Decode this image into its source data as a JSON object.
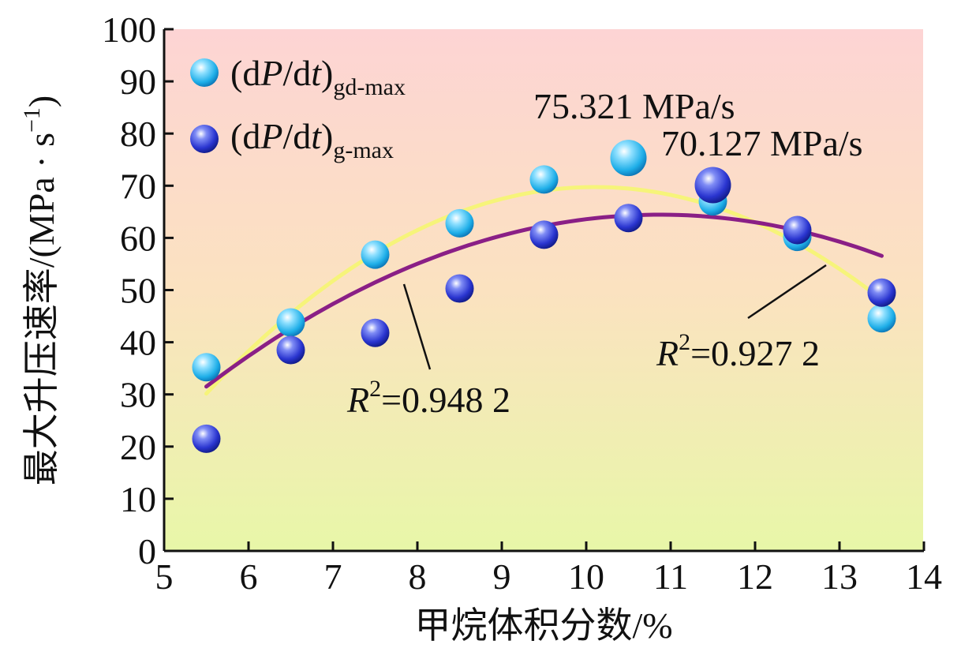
{
  "chart_data": {
    "type": "scatter",
    "title": "",
    "xlabel": "甲烷体积分数/%",
    "ylabel": "最大升压速率/(MPa · s",
    "ylabel_sup": "−1",
    "ylabel_close": ")",
    "xlim": [
      5,
      14
    ],
    "ylim": [
      0,
      100
    ],
    "xticks": [
      "5",
      "6",
      "7",
      "8",
      "9",
      "10",
      "11",
      "12",
      "13",
      "14"
    ],
    "yticks": [
      "0",
      "10",
      "20",
      "30",
      "40",
      "50",
      "60",
      "70",
      "80",
      "90",
      "100"
    ],
    "series": [
      {
        "name": "(dP/dt)gd-max",
        "legend_main_pre": "(d",
        "legend_main_italic": "P",
        "legend_main_mid": "/d",
        "legend_main_italic2": "t",
        "legend_main_post": ")",
        "legend_sub": "gd-max",
        "color": "#29b6f0",
        "x": [
          5.5,
          6.5,
          7.5,
          8.5,
          9.5,
          10.5,
          11.5,
          12.5,
          13.5
        ],
        "y": [
          35.2,
          43.8,
          56.8,
          62.8,
          71.2,
          75.321,
          67.0,
          60.2,
          44.6
        ],
        "fit_color": "#f6f47a",
        "fit_coeffs": [
          -121.07,
          37.78,
          -1.87
        ],
        "fit_xrange": [
          5.5,
          13.5
        ],
        "r2_italic": "R",
        "r2_sup": "2",
        "r2_value": "=0.927 2",
        "peak_label": "75.321 MPa/s"
      },
      {
        "name": "(dP/dt)g-max",
        "legend_main_pre": "(d",
        "legend_main_italic": "P",
        "legend_main_mid": "/d",
        "legend_main_italic2": "t",
        "legend_main_post": ")",
        "legend_sub": "g-max",
        "color": "#2838c8",
        "x": [
          5.5,
          6.5,
          7.5,
          8.5,
          9.5,
          10.5,
          11.5,
          12.5,
          13.5
        ],
        "y": [
          21.5,
          38.5,
          41.8,
          50.3,
          60.6,
          63.8,
          70.127,
          61.5,
          49.5
        ],
        "fit_color": "#8a1f86",
        "fit_coeffs": [
          -70.52,
          24.83,
          -1.142
        ],
        "fit_xrange": [
          5.5,
          13.5
        ],
        "r2_italic": "R",
        "r2_sup": "2",
        "r2_value": "=0.948 2",
        "peak_label": "70.127 MPa/s"
      }
    ],
    "background": {
      "top_color": "#fdd4d4",
      "mid_color": "#fbe2c0",
      "bottom_color": "#e8f7a8"
    }
  }
}
